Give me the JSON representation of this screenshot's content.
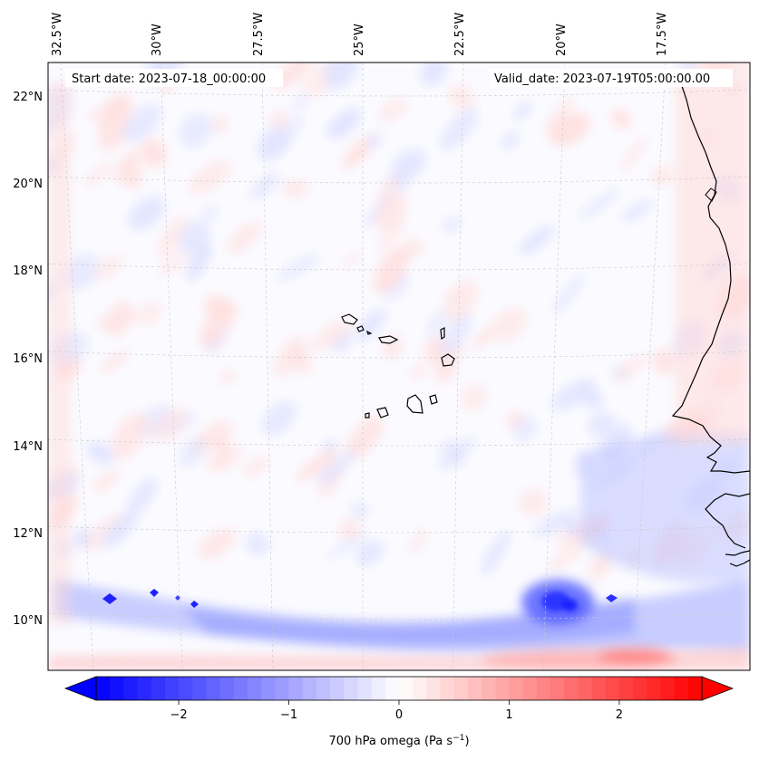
{
  "map": {
    "start_date_text": "Start date: 2023-07-18_00:00:00",
    "valid_date_text": "Valid_date: 2023-07-19T05:00:00.00",
    "top_lon_labels": [
      "32.5°W",
      "30°W",
      "27.5°W",
      "25°W",
      "22.5°W",
      "20°W",
      "17.5°W"
    ],
    "left_lat_labels": [
      "22°N",
      "20°N",
      "18°N",
      "16°N",
      "14°N",
      "12°N",
      "10°N"
    ],
    "extent": {
      "lon_min": -32.8,
      "lon_max": -15.6,
      "lat_min": 8.9,
      "lat_max": 22.8
    },
    "field": "700 hPa omega"
  },
  "colorbar": {
    "label_text": "700 hPa omega (Pa s",
    "label_sup": "−1",
    "label_close": ")",
    "ticks": [
      "−2",
      "−1",
      "0",
      "1",
      "2"
    ],
    "range": [
      -2.75,
      2.75
    ],
    "cmap": "bwr",
    "low_color": "#0000ff",
    "mid_color": "#ffffff",
    "high_color": "#ff0000"
  }
}
